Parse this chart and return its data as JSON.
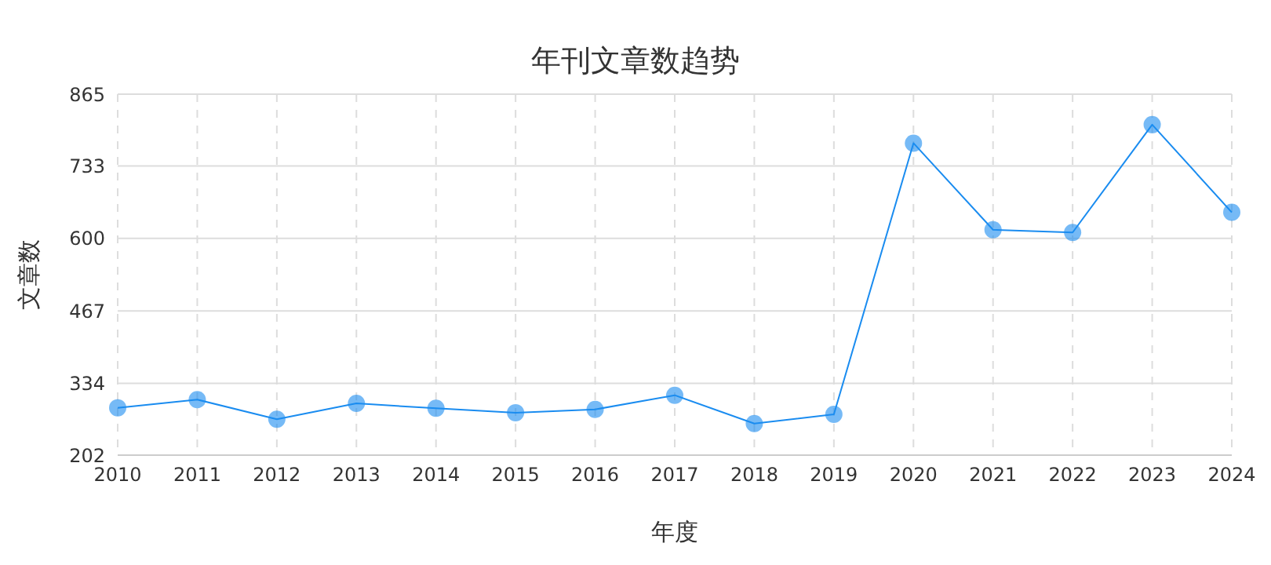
{
  "chart_data": {
    "type": "line",
    "title": "年刊文章数趋势",
    "xlabel": "年度",
    "ylabel": "文章数",
    "categories": [
      "2010",
      "2011",
      "2012",
      "2013",
      "2014",
      "2015",
      "2016",
      "2017",
      "2018",
      "2019",
      "2020",
      "2021",
      "2022",
      "2023",
      "2024"
    ],
    "series": [
      {
        "color": "#1a8cf0",
        "values": [
          289,
          304,
          268,
          297,
          288,
          280,
          286,
          312,
          260,
          277,
          775,
          616,
          611,
          809,
          648
        ]
      }
    ],
    "ylim": [
      202,
      865
    ],
    "yticks": [
      202,
      334,
      467,
      600,
      733,
      865
    ],
    "grid": true,
    "marker": "circle",
    "line_style": "solid"
  }
}
